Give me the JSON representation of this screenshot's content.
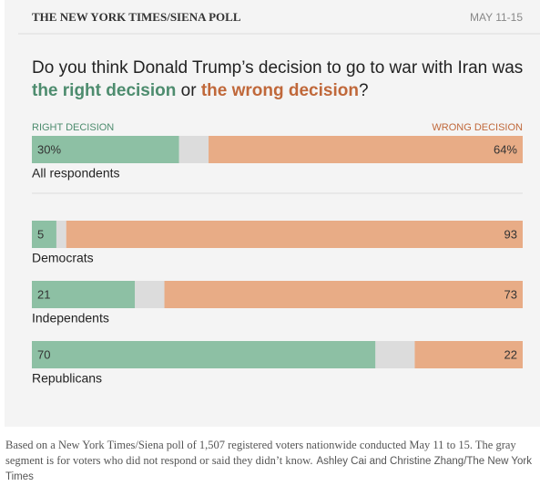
{
  "header": {
    "source": "THE NEW YORK TIMES/SIENA POLL",
    "date": "MAY 11-15"
  },
  "chart_data": {
    "type": "bar",
    "orientation": "horizontal",
    "stacked": true,
    "title_parts": [
      "Do you think Donald Trump’s decision to go to war with Iran was",
      "the right decision",
      "or",
      "the wrong decision",
      "?"
    ],
    "categories": [
      "All respondents",
      "Democrats",
      "Independents",
      "Republicans"
    ],
    "xlim": [
      0,
      100
    ],
    "series": [
      {
        "name": "RIGHT DECISION",
        "color": "#8dc0a4",
        "values": [
          30,
          5,
          21,
          70
        ],
        "value_labels": [
          "30%",
          "5",
          "21",
          "70"
        ]
      },
      {
        "color": "#dcdcdc",
        "values": [
          6,
          2,
          6,
          8
        ]
      },
      {
        "name": "WRONG DECISION",
        "color": "#e8ac86",
        "values": [
          64,
          93,
          73,
          22
        ],
        "value_labels": [
          "64%",
          "93",
          "73",
          "22"
        ]
      }
    ]
  },
  "footer": {
    "note": "Based on a New York Times/Siena poll of 1,507 registered voters nationwide conducted May 11 to 15. The gray segment is for voters who did not respond or said they didn’t know.",
    "credit": "Ashley Cai and Christine Zhang/The New York Times"
  }
}
